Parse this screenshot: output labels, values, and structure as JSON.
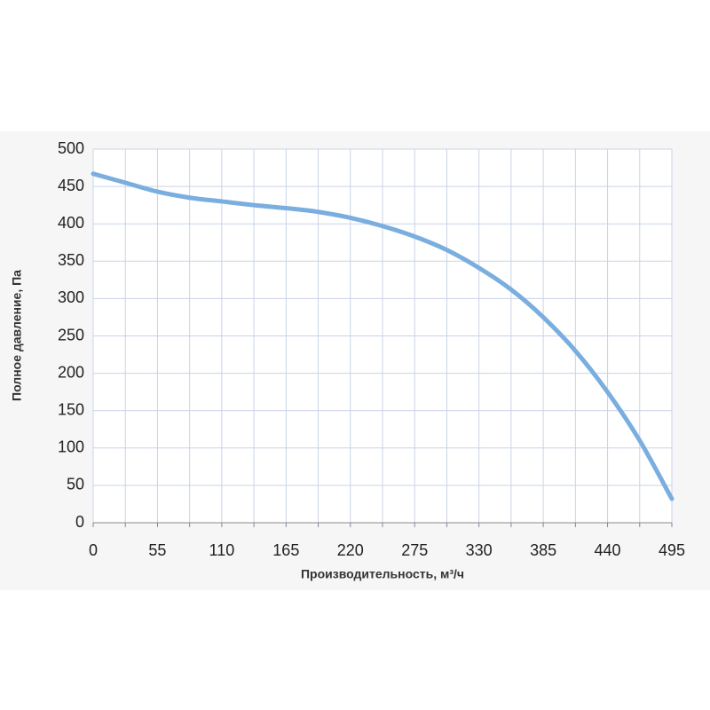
{
  "chart_data": {
    "type": "line",
    "x_label": "Производительность, м³/ч",
    "y_label": "Полное давление, Па",
    "x": [
      0,
      27.5,
      55,
      82.5,
      110,
      137.5,
      165,
      192.5,
      220,
      247.5,
      275,
      302.5,
      330,
      357.5,
      385,
      412.5,
      440,
      467.5,
      495
    ],
    "series": [
      {
        "color": "#7aaedf",
        "values": [
          467,
          455,
          443,
          435,
          430,
          425,
          421,
          416,
          408,
          397,
          383,
          365,
          341,
          312,
          275,
          230,
          175,
          110,
          32
        ]
      }
    ],
    "xlim": [
      0,
      495
    ],
    "xticks": [
      0,
      55,
      110,
      165,
      220,
      275,
      330,
      385,
      440,
      495
    ],
    "xminorticks": [
      27.5,
      82.5,
      137.5,
      192.5,
      247.5,
      302.5,
      357.5,
      412.5,
      467.5
    ],
    "ylim": [
      0,
      500
    ],
    "yticks": [
      0,
      50,
      100,
      150,
      200,
      250,
      300,
      350,
      400,
      450,
      500
    ],
    "grid": true
  }
}
